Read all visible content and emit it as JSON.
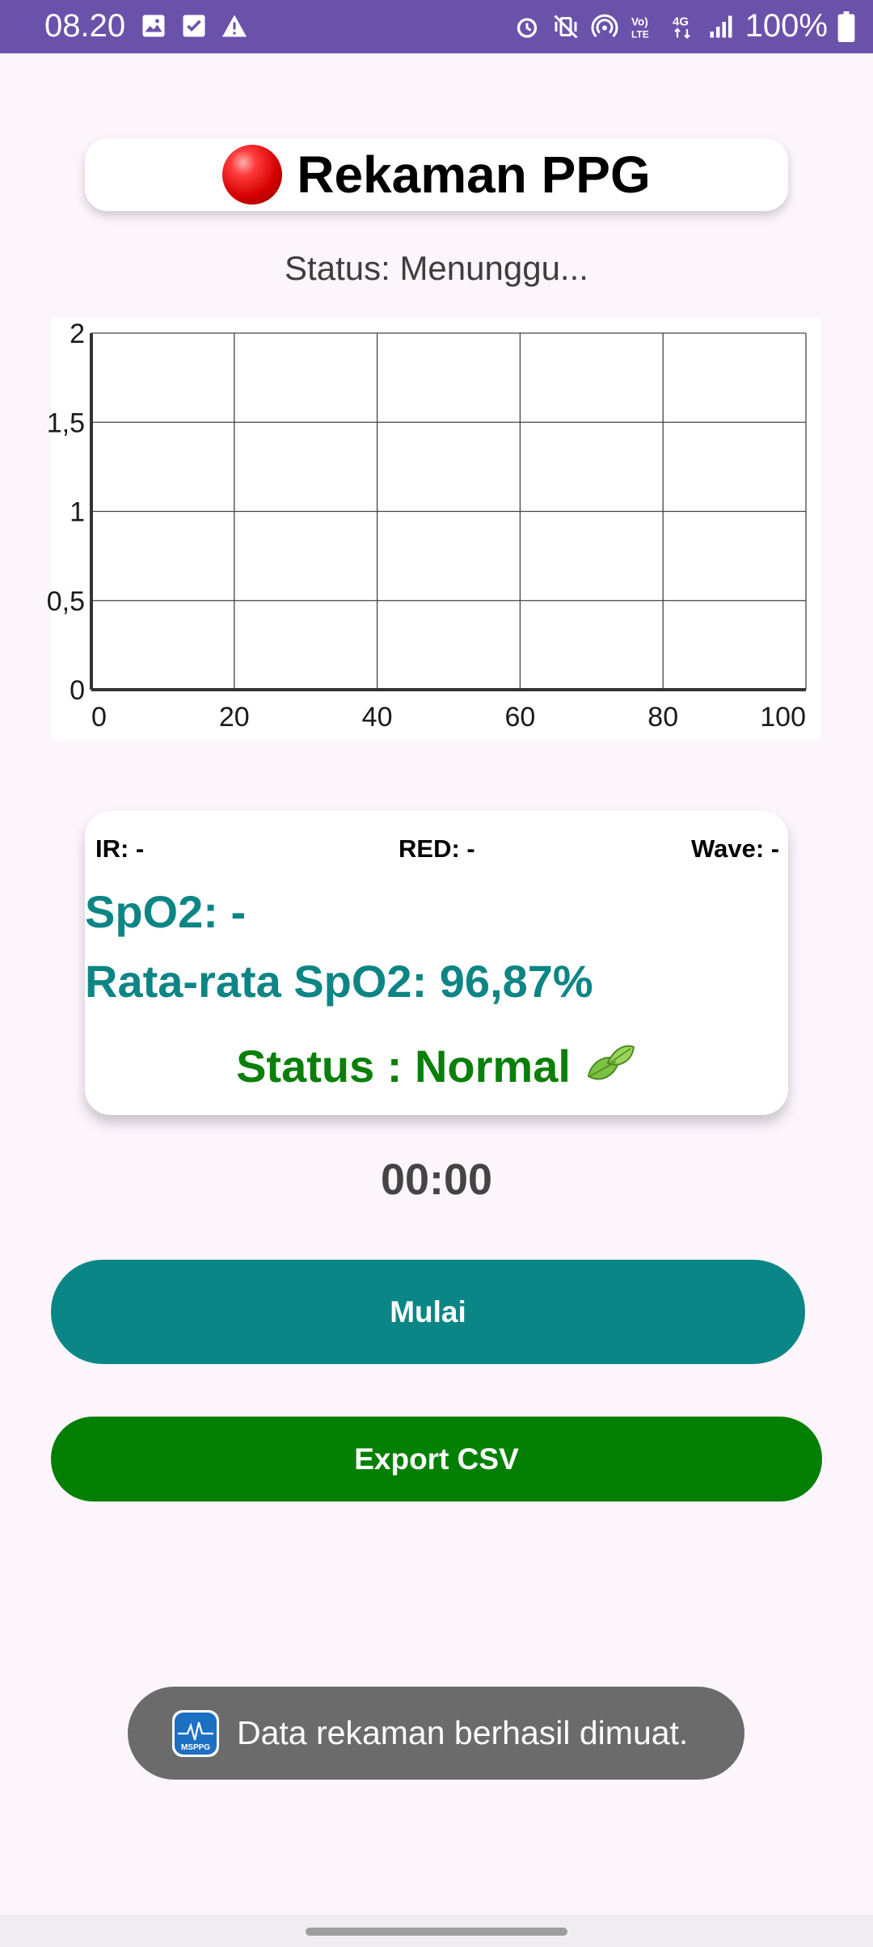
{
  "status_bar": {
    "time": "08.20",
    "battery_pct": "100%",
    "left_icons": [
      "image-icon",
      "check-icon",
      "warning-icon"
    ],
    "right_icons": [
      "alarm-icon",
      "vibrate-icon",
      "hotspot-icon",
      "volte-icon",
      "4g-icon",
      "signal-icon",
      "battery-icon"
    ]
  },
  "header": {
    "title": "Rekaman PPG",
    "status": "Status: Menunggu..."
  },
  "chart_data": {
    "type": "line",
    "series": [],
    "xlim": [
      0,
      100
    ],
    "ylim": [
      0,
      2
    ],
    "x_ticks": [
      "0",
      "20",
      "40",
      "60",
      "80",
      "100"
    ],
    "y_ticks": [
      "0",
      "0,5",
      "1",
      "1,5",
      "2"
    ],
    "grid": true
  },
  "readings": {
    "ir": "IR: -",
    "red": "RED: -",
    "wave": "Wave: -",
    "spo2": "SpO2: -",
    "avg_spo2": "Rata-rata SpO2: 96,87%",
    "status": "Status : Normal"
  },
  "timer": "00:00",
  "buttons": {
    "start": "Mulai",
    "export": "Export CSV"
  },
  "toast": {
    "app_icon_text": "MSPPG",
    "message": "Data rekaman berhasil dimuat."
  },
  "colors": {
    "status_bar": "#6a52ab",
    "teal": "#0b8686",
    "green": "#038003",
    "toast": "#6b6b6b"
  }
}
